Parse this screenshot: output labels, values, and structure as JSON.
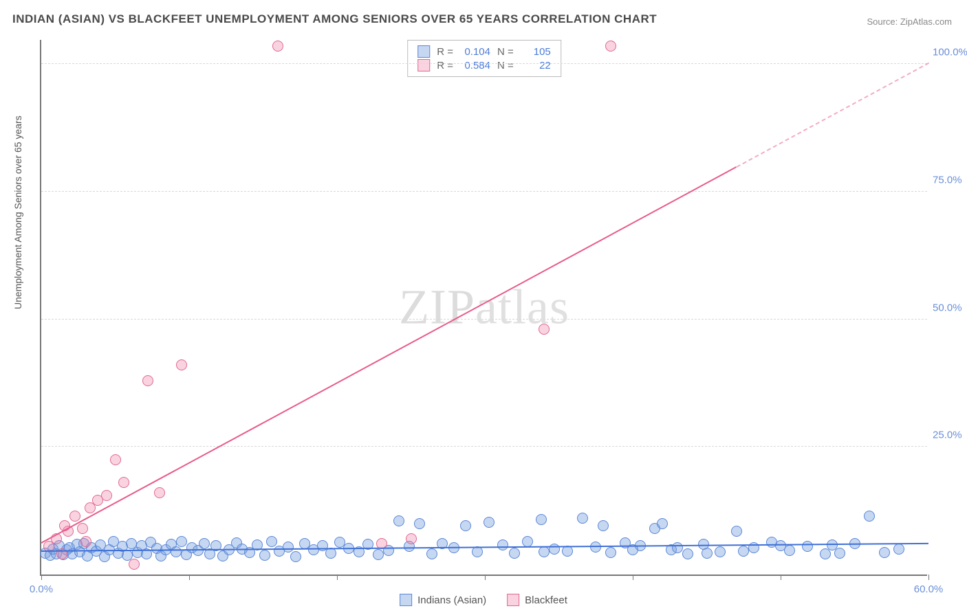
{
  "title": "INDIAN (ASIAN) VS BLACKFEET UNEMPLOYMENT AMONG SENIORS OVER 65 YEARS CORRELATION CHART",
  "source": "Source: ZipAtlas.com",
  "ylabel": "Unemployment Among Seniors over 65 years",
  "watermark_left": "ZIP",
  "watermark_right": "atlas",
  "chart": {
    "type": "scatter",
    "xlim": [
      0,
      60
    ],
    "ylim": [
      0,
      105
    ],
    "xticks": [
      0,
      10,
      20,
      30,
      40,
      50,
      60
    ],
    "xtick_labels": {
      "0": "0.0%",
      "60": "60.0%"
    },
    "yticks": [
      25,
      50,
      75,
      100
    ],
    "ytick_labels": [
      "25.0%",
      "50.0%",
      "75.0%",
      "100.0%"
    ],
    "grid_color": "#d8d8d8",
    "axis_color": "#777777",
    "background_color": "#ffffff",
    "tick_label_color": "#6a8fd8",
    "tick_label_fontsize": 15
  },
  "series": {
    "indians": {
      "label": "Indians (Asian)",
      "marker_fill": "rgba(120,160,225,0.42)",
      "marker_stroke": "#5b87d6",
      "marker_size": 16,
      "trend_color": "#3d6fd6",
      "trend": {
        "x1": 0,
        "y1": 4.5,
        "x2": 60,
        "y2": 6.0
      },
      "R": "0.104",
      "N": "105",
      "points": [
        [
          0.3,
          4.2
        ],
        [
          0.6,
          3.8
        ],
        [
          0.8,
          5.0
        ],
        [
          1.0,
          4.1
        ],
        [
          1.2,
          5.6
        ],
        [
          1.5,
          3.9
        ],
        [
          1.7,
          4.8
        ],
        [
          1.9,
          5.3
        ],
        [
          2.1,
          4.0
        ],
        [
          2.4,
          5.9
        ],
        [
          2.6,
          4.4
        ],
        [
          2.9,
          6.1
        ],
        [
          3.1,
          3.7
        ],
        [
          3.4,
          5.2
        ],
        [
          3.7,
          4.6
        ],
        [
          4.0,
          5.8
        ],
        [
          4.3,
          3.5
        ],
        [
          4.6,
          4.9
        ],
        [
          4.9,
          6.4
        ],
        [
          5.2,
          4.2
        ],
        [
          5.5,
          5.5
        ],
        [
          5.8,
          3.8
        ],
        [
          6.1,
          6.0
        ],
        [
          6.5,
          4.3
        ],
        [
          6.8,
          5.7
        ],
        [
          7.1,
          4.0
        ],
        [
          7.4,
          6.3
        ],
        [
          7.8,
          5.1
        ],
        [
          8.1,
          3.6
        ],
        [
          8.4,
          4.8
        ],
        [
          8.8,
          5.9
        ],
        [
          9.1,
          4.5
        ],
        [
          9.5,
          6.5
        ],
        [
          9.8,
          3.9
        ],
        [
          10.2,
          5.3
        ],
        [
          10.6,
          4.7
        ],
        [
          11.0,
          6.1
        ],
        [
          11.4,
          4.1
        ],
        [
          11.8,
          5.6
        ],
        [
          12.3,
          3.7
        ],
        [
          12.7,
          4.9
        ],
        [
          13.2,
          6.2
        ],
        [
          13.6,
          5.0
        ],
        [
          14.1,
          4.3
        ],
        [
          14.6,
          5.8
        ],
        [
          15.1,
          3.8
        ],
        [
          15.6,
          6.4
        ],
        [
          16.1,
          4.6
        ],
        [
          16.7,
          5.4
        ],
        [
          17.2,
          3.5
        ],
        [
          17.8,
          6.0
        ],
        [
          18.4,
          4.8
        ],
        [
          19.0,
          5.7
        ],
        [
          19.6,
          4.2
        ],
        [
          20.2,
          6.3
        ],
        [
          20.8,
          5.1
        ],
        [
          21.5,
          4.4
        ],
        [
          22.1,
          5.9
        ],
        [
          22.8,
          3.9
        ],
        [
          23.5,
          4.7
        ],
        [
          24.2,
          10.5
        ],
        [
          24.9,
          5.5
        ],
        [
          25.6,
          10.0
        ],
        [
          26.4,
          4.0
        ],
        [
          27.1,
          6.1
        ],
        [
          27.9,
          5.3
        ],
        [
          28.7,
          9.5
        ],
        [
          29.5,
          4.5
        ],
        [
          30.3,
          10.2
        ],
        [
          31.2,
          5.8
        ],
        [
          32.0,
          4.2
        ],
        [
          32.9,
          6.5
        ],
        [
          33.8,
          10.8
        ],
        [
          34.7,
          5.0
        ],
        [
          35.6,
          4.6
        ],
        [
          36.6,
          11.0
        ],
        [
          37.5,
          5.4
        ],
        [
          38.5,
          4.3
        ],
        [
          39.5,
          6.2
        ],
        [
          40.5,
          5.6
        ],
        [
          41.5,
          9.0
        ],
        [
          42.6,
          4.8
        ],
        [
          43.7,
          4.0
        ],
        [
          44.8,
          5.9
        ],
        [
          45.9,
          4.5
        ],
        [
          47.0,
          8.5
        ],
        [
          48.2,
          5.2
        ],
        [
          49.4,
          6.3
        ],
        [
          50.6,
          4.7
        ],
        [
          51.8,
          5.5
        ],
        [
          53.0,
          4.1
        ],
        [
          56.0,
          11.5
        ],
        [
          57.0,
          4.3
        ],
        [
          58.0,
          5.0
        ],
        [
          53.5,
          5.8
        ],
        [
          42.0,
          10.0
        ],
        [
          45.0,
          4.2
        ],
        [
          34.0,
          4.4
        ],
        [
          38.0,
          9.5
        ],
        [
          40.0,
          4.9
        ],
        [
          43.0,
          5.3
        ],
        [
          47.5,
          4.6
        ],
        [
          50.0,
          5.7
        ],
        [
          54.0,
          4.2
        ],
        [
          55.0,
          6.0
        ]
      ]
    },
    "blackfeet": {
      "label": "Blackfeet",
      "marker_fill": "rgba(240,130,165,0.35)",
      "marker_stroke": "#e06890",
      "marker_size": 16,
      "trend_color": "#e85a8a",
      "trend": {
        "x1": 0,
        "y1": 6.0,
        "x2": 60,
        "y2": 100.0
      },
      "dash_start_x": 47,
      "R": "0.584",
      "N": "22",
      "points": [
        [
          0.5,
          5.5
        ],
        [
          1.0,
          7.0
        ],
        [
          1.4,
          4.0
        ],
        [
          1.8,
          8.5
        ],
        [
          2.3,
          11.5
        ],
        [
          2.8,
          9.0
        ],
        [
          3.3,
          13.0
        ],
        [
          3.8,
          14.5
        ],
        [
          4.4,
          15.5
        ],
        [
          5.0,
          22.5
        ],
        [
          5.6,
          18.0
        ],
        [
          6.3,
          2.0
        ],
        [
          7.2,
          38.0
        ],
        [
          8.0,
          16.0
        ],
        [
          9.5,
          41.0
        ],
        [
          3.0,
          6.5
        ],
        [
          16.0,
          103.5
        ],
        [
          23.0,
          6.0
        ],
        [
          25.0,
          7.0
        ],
        [
          34.0,
          48.0
        ],
        [
          38.5,
          103.5
        ],
        [
          1.6,
          9.5
        ]
      ]
    }
  },
  "stats_box": {
    "rows": [
      {
        "swatch": "blue",
        "R_label": "R =",
        "R": "0.104",
        "N_label": "N =",
        "N": "105"
      },
      {
        "swatch": "pink",
        "R_label": "R =",
        "R": "0.584",
        "N_label": "N =",
        "N": "22"
      }
    ]
  },
  "bottom_legend": [
    {
      "swatch": "blue",
      "label": "Indians (Asian)"
    },
    {
      "swatch": "pink",
      "label": "Blackfeet"
    }
  ]
}
